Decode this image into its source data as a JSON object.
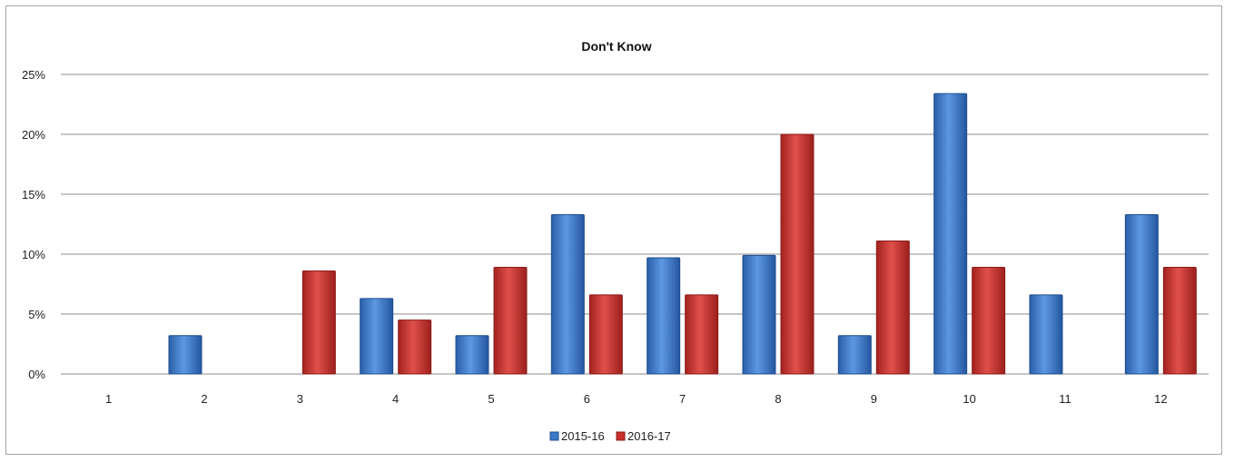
{
  "chart_data": {
    "type": "bar",
    "title": "Don't Know",
    "categories": [
      "1",
      "2",
      "3",
      "4",
      "5",
      "6",
      "7",
      "8",
      "9",
      "10",
      "11",
      "12"
    ],
    "series": [
      {
        "name": "2015-16",
        "color": "#3a78c9",
        "values": [
          0,
          3.2,
          0,
          6.3,
          3.2,
          13.3,
          9.7,
          9.9,
          3.2,
          23.4,
          6.6,
          13.3
        ]
      },
      {
        "name": "2016-17",
        "color": "#c9302c",
        "values": [
          0,
          0,
          8.6,
          4.5,
          8.9,
          6.6,
          6.6,
          20.0,
          11.1,
          8.9,
          0,
          8.9
        ]
      }
    ],
    "ylim": [
      0,
      25
    ],
    "yticks": [
      0,
      5,
      10,
      15,
      20,
      25
    ],
    "ytick_labels": [
      "0%",
      "5%",
      "10%",
      "15%",
      "20%",
      "25%"
    ],
    "grid": true,
    "legend_position": "bottom"
  }
}
